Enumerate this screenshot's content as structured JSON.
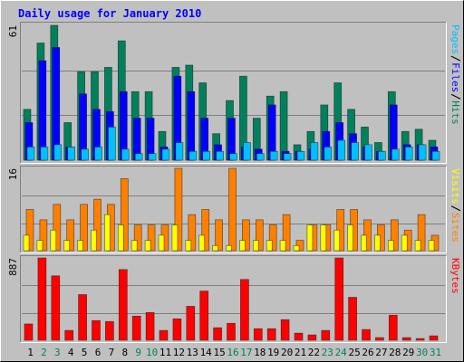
{
  "chart_data": [
    {
      "type": "bar",
      "title": "Daily usage for January 2010",
      "categories": [
        "1",
        "2",
        "3",
        "4",
        "5",
        "6",
        "7",
        "8",
        "9",
        "10",
        "11",
        "12",
        "13",
        "14",
        "15",
        "16",
        "17",
        "18",
        "19",
        "20",
        "21",
        "22",
        "23",
        "24",
        "25",
        "26",
        "27",
        "28",
        "29",
        "30",
        "31"
      ],
      "category_colors": [
        "#000000",
        "#00805c",
        "#00805c",
        "#000000",
        "#000000",
        "#000000",
        "#000000",
        "#000000",
        "#00805c",
        "#00805c",
        "#000000",
        "#000000",
        "#000000",
        "#000000",
        "#000000",
        "#00805c",
        "#00805c",
        "#000000",
        "#000000",
        "#000000",
        "#000000",
        "#000000",
        "#00805c",
        "#00805c",
        "#000000",
        "#000000",
        "#000000",
        "#000000",
        "#000000",
        "#00805c",
        "#00805c"
      ],
      "ylim": [
        0,
        61
      ],
      "yticks": [
        61
      ],
      "series": [
        {
          "name": "Hits",
          "color": "#00805c",
          "values": [
            23,
            53,
            61,
            17,
            40,
            40,
            42,
            54,
            31,
            31,
            13,
            42,
            43,
            35,
            12,
            27,
            38,
            19,
            29,
            31,
            7,
            13,
            25,
            35,
            23,
            15,
            8,
            31,
            13,
            14,
            9
          ]
        },
        {
          "name": "Files",
          "color": "#0000ff",
          "values": [
            17,
            45,
            51,
            6,
            30,
            23,
            22,
            31,
            19,
            19,
            6,
            38,
            31,
            19,
            7,
            19,
            6,
            5,
            25,
            4,
            4,
            5,
            13,
            17,
            12,
            6,
            4,
            25,
            7,
            7,
            6
          ]
        },
        {
          "name": "Pages",
          "color": "#00c0ff",
          "values": [
            6,
            6,
            7,
            6,
            5,
            6,
            15,
            5,
            3,
            3,
            5,
            8,
            4,
            4,
            4,
            3,
            8,
            3,
            4,
            3,
            4,
            8,
            6,
            9,
            8,
            7,
            4,
            5,
            6,
            7,
            4
          ]
        }
      ]
    },
    {
      "type": "bar",
      "ylim": [
        0,
        16
      ],
      "yticks": [
        16
      ],
      "series": [
        {
          "name": "Sites",
          "color": "#ff8000",
          "values": [
            8,
            6,
            9,
            6,
            9,
            10,
            9,
            14,
            5,
            5,
            5,
            16,
            7,
            8,
            6,
            16,
            6,
            6,
            5,
            7,
            2,
            5,
            5,
            8,
            8,
            6,
            5,
            6,
            4,
            7,
            3
          ]
        },
        {
          "name": "Visits",
          "color": "#ffff00",
          "values": [
            3,
            2,
            4,
            2,
            2,
            4,
            7,
            5,
            2,
            2,
            3,
            5,
            2,
            3,
            1,
            1,
            2,
            2,
            2,
            2,
            1,
            5,
            5,
            4,
            5,
            3,
            3,
            2,
            3,
            2,
            2
          ]
        }
      ]
    },
    {
      "type": "bar",
      "ylim": [
        0,
        887
      ],
      "yticks": [
        887
      ],
      "series": [
        {
          "name": "KBytes",
          "color": "#ff0000",
          "values": [
            176,
            887,
            694,
            106,
            492,
            212,
            202,
            762,
            260,
            299,
            106,
            231,
            366,
            530,
            135,
            183,
            655,
            125,
            125,
            222,
            77,
            58,
            106,
            887,
            463,
            116,
            29,
            270,
            29,
            19,
            48
          ]
        }
      ]
    }
  ]
}
